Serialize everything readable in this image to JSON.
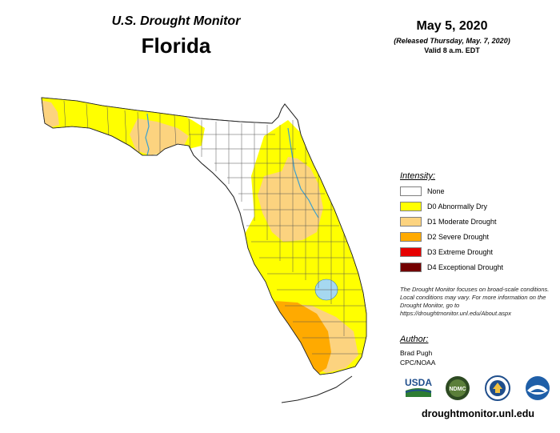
{
  "header": {
    "supertitle": "U.S. Drought Monitor",
    "state": "Florida",
    "map_date": "May 5, 2020",
    "released": "(Released Thursday, May. 7, 2020)",
    "valid": "Valid 8 a.m. EDT"
  },
  "legend": {
    "title": "Intensity:",
    "items": [
      {
        "label": "None",
        "color": "#ffffff"
      },
      {
        "label": "D0 Abnormally Dry",
        "color": "#ffff00"
      },
      {
        "label": "D1 Moderate Drought",
        "color": "#fcd37f"
      },
      {
        "label": "D2 Severe Drought",
        "color": "#ffaa00"
      },
      {
        "label": "D3 Extreme Drought",
        "color": "#e60000"
      },
      {
        "label": "D4 Exceptional Drought",
        "color": "#730000"
      }
    ]
  },
  "note": "The Drought Monitor focuses on broad-scale conditions. Local conditions may vary. For more information on the Drought Monitor, go to https://droughtmonitor.unl.edu/About.aspx",
  "author": {
    "title": "Author:",
    "name": "Brad Pugh",
    "org": "CPC/NOAA"
  },
  "logos": {
    "usda": "USDA",
    "ndmc": "NDMC"
  },
  "website": "droughtmonitor.unl.edu",
  "colors": {
    "water": "#a6d8f0",
    "county_lines": "#555555"
  }
}
